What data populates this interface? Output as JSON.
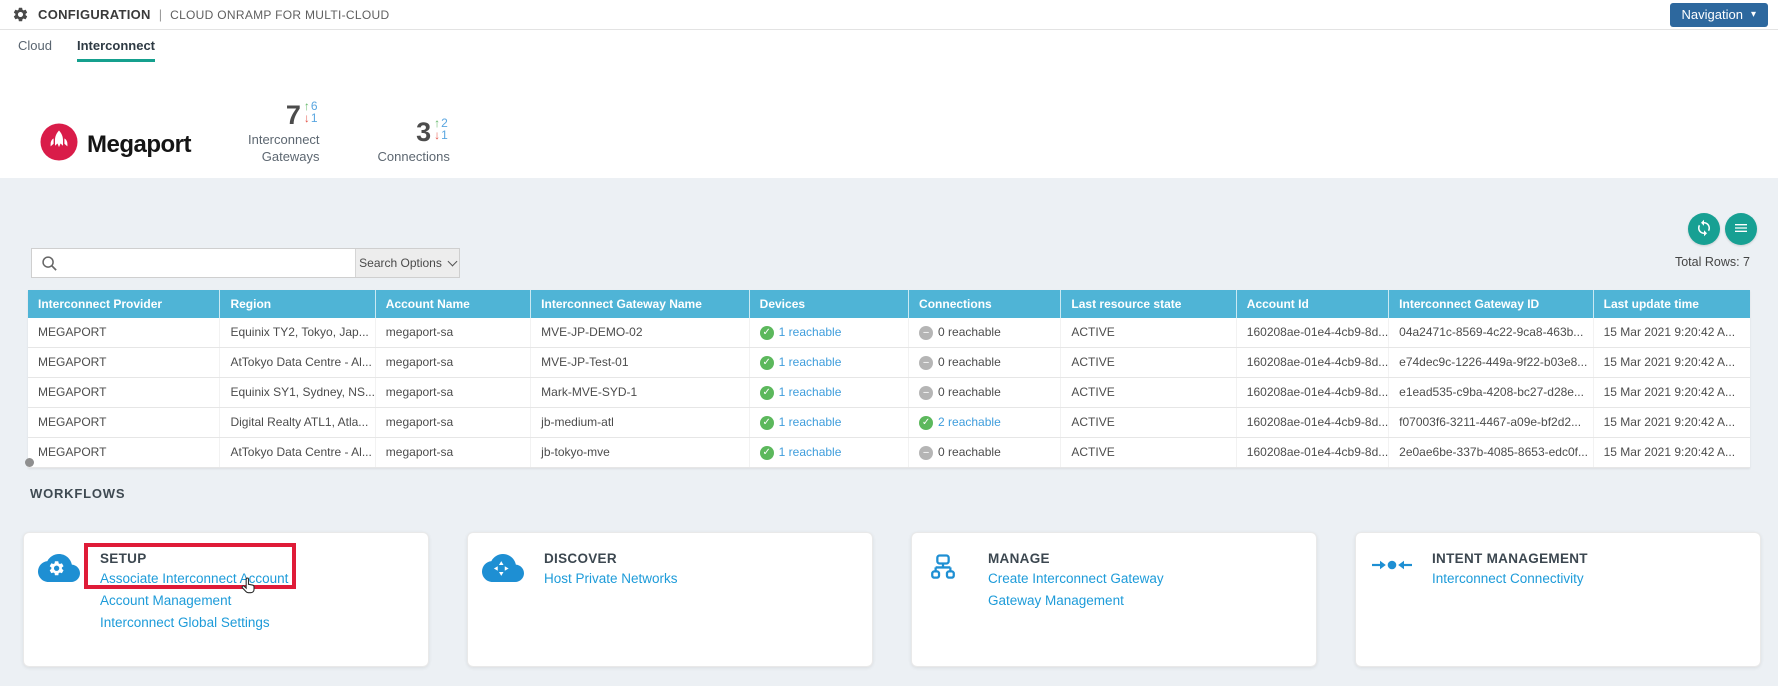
{
  "header": {
    "app_icon": "gear-icon",
    "title": "CONFIGURATION",
    "separator": "|",
    "subtitle": "CLOUD ONRAMP FOR MULTI-CLOUD",
    "nav_button_label": "Navigation",
    "nav_caret_icon": "chevron-down-icon"
  },
  "tabs": [
    {
      "label": "Cloud",
      "active": false
    },
    {
      "label": "Interconnect",
      "active": true
    }
  ],
  "stats": {
    "brand_name": "Megaport",
    "brand_icon": "megaport-rocket-logo",
    "items": [
      {
        "value": "7",
        "up_count": "6",
        "down_count": "1",
        "label": "Interconnect\nGateways"
      },
      {
        "value": "3",
        "up_count": "2",
        "down_count": "1",
        "label": "Connections"
      }
    ]
  },
  "toolbar": {
    "refresh_icon": "refresh-icon",
    "menu_icon": "hamburger-menu-icon",
    "search_icon": "search-icon",
    "search_value": "",
    "search_options_label": "Search Options",
    "total_rows_label": "Total Rows: 7"
  },
  "table": {
    "columns": [
      "Interconnect Provider",
      "Region",
      "Account Name",
      "Interconnect Gateway Name",
      "Devices",
      "Connections",
      "Last resource state",
      "Account Id",
      "Interconnect Gateway ID",
      "Last update time"
    ],
    "rows": [
      {
        "provider": "MEGAPORT",
        "region": "Equinix TY2, Tokyo, Jap...",
        "account_name": "megaport-sa",
        "gateway_name": "MVE-JP-DEMO-02",
        "devices": "1 reachable",
        "devices_ok": true,
        "connections": "0 reachable",
        "connections_ok": false,
        "state": "ACTIVE",
        "account_id": "160208ae-01e4-4cb9-8d...",
        "gateway_id": "04a2471c-8569-4c22-9ca8-463b...",
        "updated": "15 Mar 2021 9:20:42 A..."
      },
      {
        "provider": "MEGAPORT",
        "region": "AtTokyo Data Centre - Al...",
        "account_name": "megaport-sa",
        "gateway_name": "MVE-JP-Test-01",
        "devices": "1 reachable",
        "devices_ok": true,
        "connections": "0 reachable",
        "connections_ok": false,
        "state": "ACTIVE",
        "account_id": "160208ae-01e4-4cb9-8d...",
        "gateway_id": "e74dec9c-1226-449a-9f22-b03e8...",
        "updated": "15 Mar 2021 9:20:42 A..."
      },
      {
        "provider": "MEGAPORT",
        "region": "Equinix SY1, Sydney, NS...",
        "account_name": "megaport-sa",
        "gateway_name": "Mark-MVE-SYD-1",
        "devices": "1 reachable",
        "devices_ok": true,
        "connections": "0 reachable",
        "connections_ok": false,
        "state": "ACTIVE",
        "account_id": "160208ae-01e4-4cb9-8d...",
        "gateway_id": "e1ead535-c9ba-4208-bc27-d28e...",
        "updated": "15 Mar 2021 9:20:42 A..."
      },
      {
        "provider": "MEGAPORT",
        "region": "Digital Realty ATL1, Atla...",
        "account_name": "megaport-sa",
        "gateway_name": "jb-medium-atl",
        "devices": "1 reachable",
        "devices_ok": true,
        "connections": "2 reachable",
        "connections_ok": true,
        "state": "ACTIVE",
        "account_id": "160208ae-01e4-4cb9-8d...",
        "gateway_id": "f07003f6-3211-4467-a09e-bf2d2...",
        "updated": "15 Mar 2021 9:20:42 A..."
      },
      {
        "provider": "MEGAPORT",
        "region": "AtTokyo Data Centre - Al...",
        "account_name": "megaport-sa",
        "gateway_name": "jb-tokyo-mve",
        "devices": "1 reachable",
        "devices_ok": true,
        "connections": "0 reachable",
        "connections_ok": false,
        "state": "ACTIVE",
        "account_id": "160208ae-01e4-4cb9-8d...",
        "gateway_id": "2e0ae6be-337b-4085-8653-edc0f...",
        "updated": "15 Mar 2021 9:20:42 A..."
      }
    ]
  },
  "workflows": {
    "heading": "WORKFLOWS",
    "cards": [
      {
        "title": "SETUP",
        "icon": "cloud-gear-icon",
        "links": [
          "Associate Interconnect Account",
          "Account Management",
          "Interconnect Global Settings"
        ],
        "highlighted": true
      },
      {
        "title": "DISCOVER",
        "icon": "cloud-discover-icon",
        "links": [
          "Host Private Networks"
        ],
        "highlighted": false
      },
      {
        "title": "MANAGE",
        "icon": "hierarchy-icon",
        "links": [
          "Create Interconnect Gateway",
          "Gateway Management"
        ],
        "highlighted": false
      },
      {
        "title": "INTENT MANAGEMENT",
        "icon": "intent-arrows-icon",
        "links": [
          "Interconnect Connectivity"
        ],
        "highlighted": false
      }
    ]
  },
  "colors": {
    "accent_teal": "#17a093",
    "table_header_blue": "#4fb4d6",
    "link_blue": "#1d9bd9",
    "nav_button_blue": "#2d689e",
    "brand_red": "#d91c49",
    "highlight_red": "#df1b38",
    "status_green": "#5cb85c",
    "status_gray": "#b5b5b5",
    "page_gray": "#ecf0f4"
  }
}
